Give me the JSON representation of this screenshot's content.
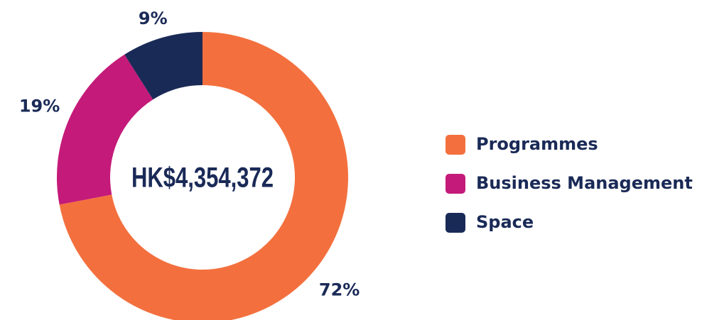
{
  "chart_data": {
    "type": "donut",
    "center_label": "HK$4,354,372",
    "categories": [
      "Programmes",
      "Business Management",
      "Space"
    ],
    "values": [
      72,
      19,
      9
    ],
    "value_labels": [
      "72%",
      "19%",
      "9%"
    ],
    "colors": [
      "#f3703e",
      "#c41a79",
      "#1a2a57"
    ],
    "legend": "right"
  }
}
